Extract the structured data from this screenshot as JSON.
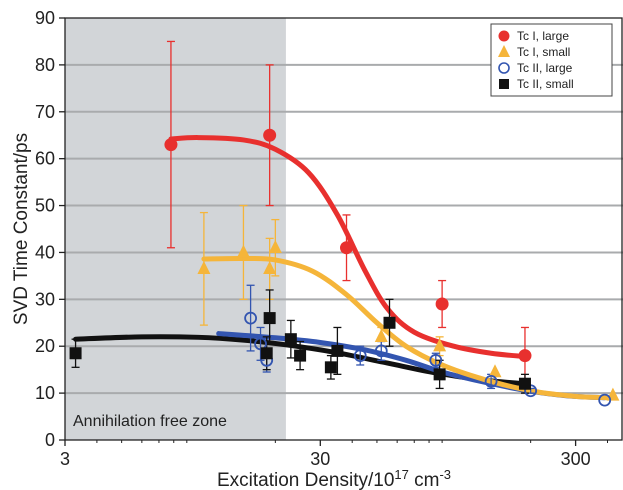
{
  "chart_data": {
    "type": "scatter",
    "xlabel": "Excitation Density/10",
    "xlabel_sup1": "17",
    "xlabel_unit": " cm",
    "xlabel_sup2": "-3",
    "ylabel": "SVD Time Constant/ps",
    "x_scale": "log",
    "xlim": [
      3,
      460
    ],
    "ylim": [
      0,
      90
    ],
    "x_ticks": [
      3,
      30,
      300
    ],
    "y_ticks": [
      0,
      10,
      20,
      30,
      40,
      50,
      60,
      70,
      80,
      90
    ],
    "grid": "horizontal",
    "legend_position": "top-right",
    "shaded_region": {
      "label": "Annihilation free zone",
      "x_range": [
        3,
        22
      ],
      "color": "#d2d5d8"
    },
    "series": [
      {
        "name": "Tc I, large",
        "color": "#e8302e",
        "marker": "circle-filled",
        "points": [
          {
            "x": 7.8,
            "y": 63,
            "lo": 41,
            "hi": 85
          },
          {
            "x": 19,
            "y": 65,
            "lo": 50,
            "hi": 80
          },
          {
            "x": 38,
            "y": 41,
            "lo": 34,
            "hi": 48
          },
          {
            "x": 90,
            "y": 29,
            "lo": 24,
            "hi": 34
          },
          {
            "x": 190,
            "y": 18,
            "lo": 12,
            "hi": 24
          }
        ],
        "fit": [
          [
            7.8,
            64.2
          ],
          [
            10,
            64.5
          ],
          [
            15,
            64
          ],
          [
            20,
            62
          ],
          [
            27,
            57
          ],
          [
            35,
            48
          ],
          [
            45,
            36
          ],
          [
            55,
            28
          ],
          [
            70,
            23
          ],
          [
            100,
            20
          ],
          [
            140,
            18.5
          ],
          [
            190,
            17.8
          ]
        ]
      },
      {
        "name": "Tc I, small",
        "color": "#f5b53a",
        "marker": "triangle-filled",
        "points": [
          {
            "x": 10.5,
            "y": 36.5,
            "lo": 24.5,
            "hi": 48.5
          },
          {
            "x": 15,
            "y": 40,
            "lo": 30,
            "hi": 50
          },
          {
            "x": 19,
            "y": 36.5,
            "lo": 30,
            "hi": 43
          },
          {
            "x": 20,
            "y": 41,
            "lo": 35,
            "hi": 47
          },
          {
            "x": 52,
            "y": 22,
            "lo": 20,
            "hi": 24
          },
          {
            "x": 88,
            "y": 20,
            "lo": 18,
            "hi": 22
          },
          {
            "x": 145,
            "y": 14.5,
            "lo": 14.5,
            "hi": 14.5
          },
          {
            "x": 420,
            "y": 9.5,
            "lo": 9.5,
            "hi": 9.5
          }
        ],
        "fit": [
          [
            10.5,
            38.6
          ],
          [
            15,
            38.7
          ],
          [
            20,
            38.4
          ],
          [
            28,
            36
          ],
          [
            38,
            31
          ],
          [
            50,
            25
          ],
          [
            65,
            20
          ],
          [
            90,
            16
          ],
          [
            130,
            13
          ],
          [
            200,
            10.5
          ],
          [
            300,
            9.3
          ],
          [
            420,
            9
          ]
        ]
      },
      {
        "name": "Tc II, large",
        "color": "#3355b0",
        "marker": "circle-open",
        "points": [
          {
            "x": 16,
            "y": 26,
            "lo": 19,
            "hi": 33
          },
          {
            "x": 17.5,
            "y": 20.5,
            "lo": 17,
            "hi": 24
          },
          {
            "x": 18.5,
            "y": 17,
            "lo": 14.5,
            "hi": 19.5
          },
          {
            "x": 43,
            "y": 18,
            "lo": 16,
            "hi": 20
          },
          {
            "x": 52,
            "y": 19,
            "lo": 17,
            "hi": 21
          },
          {
            "x": 85,
            "y": 17,
            "lo": 15.5,
            "hi": 18.5
          },
          {
            "x": 140,
            "y": 12.5,
            "lo": 11,
            "hi": 14
          },
          {
            "x": 200,
            "y": 10.5,
            "lo": 10,
            "hi": 11
          },
          {
            "x": 390,
            "y": 8.5,
            "lo": 8.5,
            "hi": 8.5
          }
        ],
        "fit": [
          [
            12,
            22.7
          ],
          [
            20,
            21.8
          ],
          [
            30,
            20.8
          ],
          [
            45,
            19.2
          ],
          [
            65,
            17
          ],
          [
            90,
            14.5
          ],
          [
            130,
            12.4
          ],
          [
            190,
            10.6
          ],
          [
            270,
            9.5
          ],
          [
            390,
            9
          ]
        ]
      },
      {
        "name": "Tc II, small",
        "color": "#111111",
        "marker": "square-filled",
        "points": [
          {
            "x": 3.3,
            "y": 18.5,
            "lo": 15.5,
            "hi": 21.5
          },
          {
            "x": 18.5,
            "y": 18.5,
            "lo": 15,
            "hi": 22
          },
          {
            "x": 19,
            "y": 26,
            "lo": 21,
            "hi": 32
          },
          {
            "x": 23,
            "y": 21.5,
            "lo": 17.5,
            "hi": 25.5
          },
          {
            "x": 25,
            "y": 18,
            "lo": 15,
            "hi": 21
          },
          {
            "x": 33,
            "y": 15.5,
            "lo": 13,
            "hi": 18
          },
          {
            "x": 35,
            "y": 19,
            "lo": 14,
            "hi": 24
          },
          {
            "x": 56,
            "y": 25,
            "lo": 20,
            "hi": 30
          },
          {
            "x": 88,
            "y": 14,
            "lo": 11,
            "hi": 17
          },
          {
            "x": 190,
            "y": 12,
            "lo": 10,
            "hi": 14
          }
        ],
        "fit": [
          [
            3.3,
            21.5
          ],
          [
            6,
            22
          ],
          [
            10,
            21.9
          ],
          [
            15,
            21.3
          ],
          [
            22,
            20.3
          ],
          [
            35,
            18.6
          ],
          [
            55,
            16.4
          ],
          [
            85,
            14.3
          ],
          [
            130,
            12.8
          ],
          [
            190,
            12
          ]
        ]
      }
    ]
  }
}
